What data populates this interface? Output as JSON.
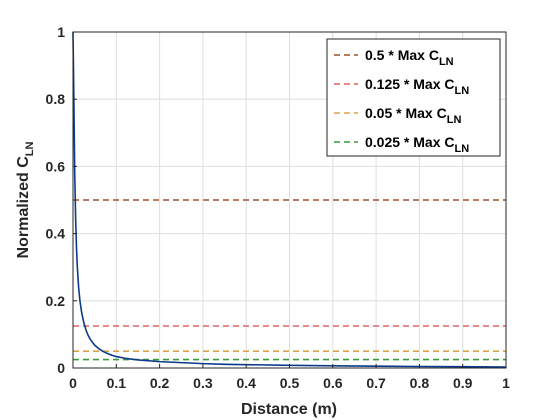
{
  "chart_data": {
    "type": "line",
    "xlabel": "Distance (m)",
    "ylabel": {
      "main": "Normalized C",
      "sub": "LN"
    },
    "xlim": [
      0,
      1
    ],
    "ylim": [
      0,
      1
    ],
    "x_ticks": [
      "0",
      "0.1",
      "0.2",
      "0.3",
      "0.4",
      "0.5",
      "0.6",
      "0.7",
      "0.8",
      "0.9",
      "1"
    ],
    "y_ticks": [
      "0",
      "0.2",
      "0.4",
      "0.6",
      "0.8",
      "1"
    ],
    "grid": true,
    "legend_position": "top-right",
    "curve": {
      "color": "#0b3a8a",
      "points": [
        [
          0.0,
          1.0
        ],
        [
          0.002,
          0.8
        ],
        [
          0.004,
          0.58
        ],
        [
          0.006,
          0.45
        ],
        [
          0.008,
          0.36
        ],
        [
          0.01,
          0.3
        ],
        [
          0.013,
          0.24
        ],
        [
          0.016,
          0.2
        ],
        [
          0.02,
          0.165
        ],
        [
          0.025,
          0.135
        ],
        [
          0.03,
          0.113
        ],
        [
          0.035,
          0.097
        ],
        [
          0.04,
          0.085
        ],
        [
          0.05,
          0.068
        ],
        [
          0.06,
          0.057
        ],
        [
          0.07,
          0.049
        ],
        [
          0.08,
          0.043
        ],
        [
          0.09,
          0.038
        ],
        [
          0.1,
          0.034
        ],
        [
          0.12,
          0.029
        ],
        [
          0.15,
          0.024
        ],
        [
          0.2,
          0.019
        ],
        [
          0.25,
          0.016
        ],
        [
          0.3,
          0.013
        ],
        [
          0.35,
          0.011
        ],
        [
          0.4,
          0.01
        ],
        [
          0.5,
          0.008
        ],
        [
          0.6,
          0.0065
        ],
        [
          0.7,
          0.0055
        ],
        [
          0.8,
          0.0045
        ],
        [
          0.9,
          0.0038
        ],
        [
          1.0,
          0.003
        ]
      ]
    },
    "series": [
      {
        "name": "0.5 * Max C",
        "sub": "LN",
        "value": 0.5,
        "color": "#a0522d"
      },
      {
        "name": "0.125 * Max C",
        "sub": "LN",
        "value": 0.125,
        "color": "#e06060"
      },
      {
        "name": "0.05 * Max C",
        "sub": "LN",
        "value": 0.05,
        "color": "#d9a54a"
      },
      {
        "name": "0.025 * Max C",
        "sub": "LN",
        "value": 0.025,
        "color": "#3a9a3a"
      }
    ]
  }
}
